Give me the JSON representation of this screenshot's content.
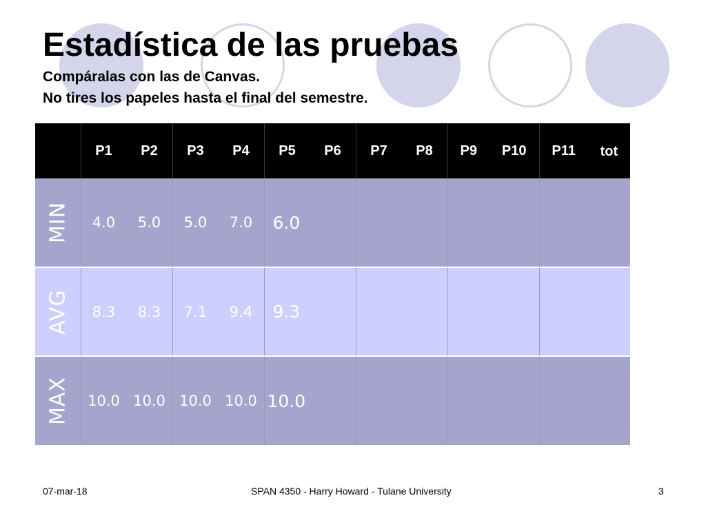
{
  "slide": {
    "title": "Estadística de las pruebas",
    "subtitle_1": "Compáralas con las de Canvas.",
    "subtitle_2": "No tires los papeles hasta el final del semestre."
  },
  "table": {
    "headers": [
      "P1",
      "P2",
      "P3",
      "P4",
      "P5",
      "P6",
      "P7",
      "P8",
      "P9",
      "P10",
      "P11",
      "tot"
    ],
    "rows": [
      {
        "label": "MIN",
        "values": [
          "4.0",
          "5.0",
          "5.0",
          "7.0",
          "6.0",
          "",
          "",
          "",
          "",
          "",
          "",
          ""
        ]
      },
      {
        "label": "AVG",
        "values": [
          "8.3",
          "8.3",
          "7.1",
          "9.4",
          "9.3",
          "",
          "",
          "",
          "",
          "",
          "",
          ""
        ]
      },
      {
        "label": "MAX",
        "values": [
          "10.0",
          "10.0",
          "10.0",
          "10.0",
          "10.0",
          "",
          "",
          "",
          "",
          "",
          "",
          ""
        ]
      }
    ]
  },
  "footer": {
    "date": "07-mar-18",
    "course": "SPAN 4350 - Harry Howard - Tulane University",
    "page_number": "3"
  },
  "colors": {
    "header_bg": "#000000",
    "row_dark": "#a4a4cc",
    "row_light": "#cccfff",
    "circle": "#d4d4ea"
  }
}
